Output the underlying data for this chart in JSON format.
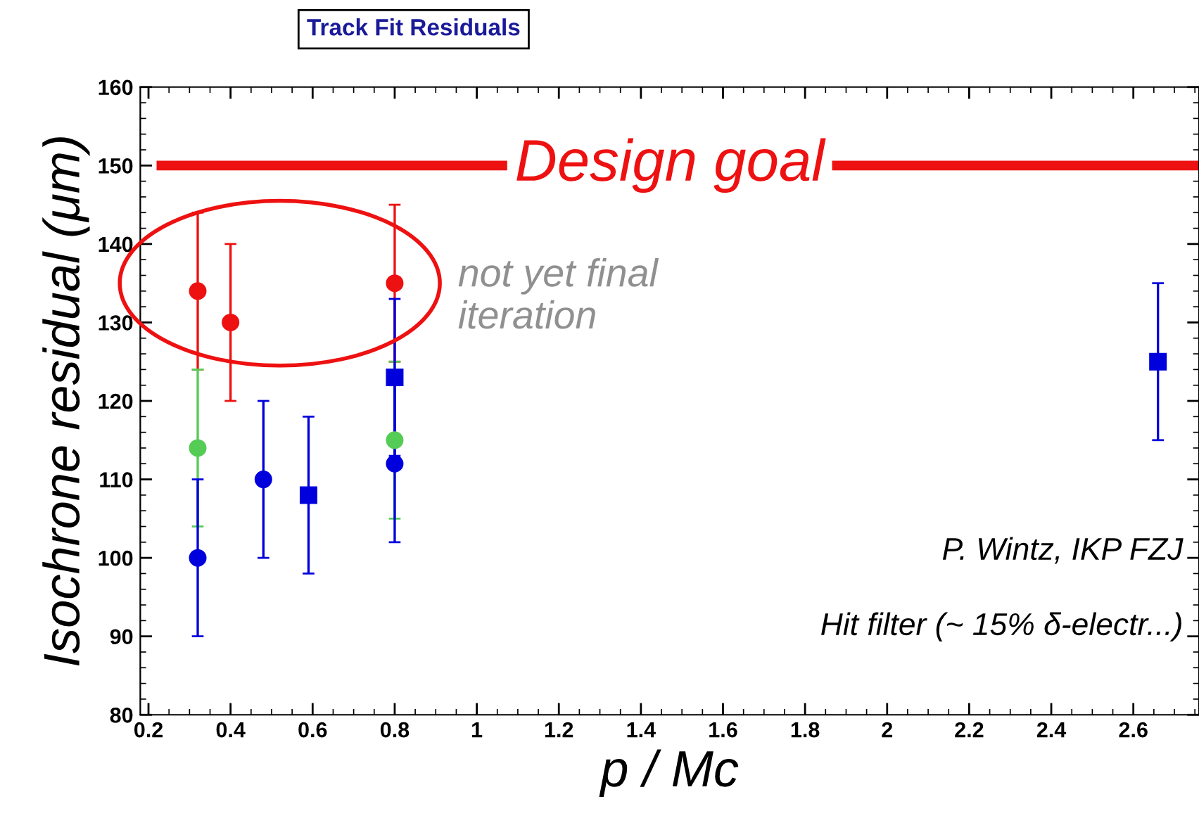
{
  "chart_data": {
    "type": "scatter",
    "title": "Track Fit Residuals",
    "xlabel": "p / Mc",
    "ylabel": "Isochrone residual (μm)",
    "xlim": [
      0.18,
      2.76
    ],
    "xticks": [
      0.2,
      0.4,
      0.6,
      0.8,
      1,
      1.2,
      1.4,
      1.6,
      1.8,
      2,
      2.2,
      2.4,
      2.6
    ],
    "ylim": [
      80,
      160
    ],
    "yticks": [
      80,
      90,
      100,
      110,
      120,
      130,
      140,
      150,
      160
    ],
    "grid": false,
    "series": [
      {
        "color": "#ee1111",
        "marker": "circle",
        "x": [
          0.32,
          0.4,
          0.8
        ],
        "values": [
          134,
          130,
          135
        ],
        "errors": [
          10,
          10,
          10
        ]
      },
      {
        "color": "#55cc55",
        "marker": "circle",
        "x": [
          0.32,
          0.8
        ],
        "values": [
          114,
          115
        ],
        "errors": [
          10,
          10
        ]
      },
      {
        "color": "#0000dd",
        "marker": "circle",
        "x": [
          0.32,
          0.48,
          0.8
        ],
        "values": [
          100,
          110,
          112
        ],
        "errors": [
          10,
          10,
          10
        ]
      },
      {
        "color": "#0000dd",
        "marker": "square",
        "x": [
          0.59,
          0.8,
          2.66
        ],
        "values": [
          108,
          123,
          125
        ],
        "errors": [
          10,
          10,
          10
        ]
      }
    ],
    "ref_lines": [
      {
        "axis": "y",
        "value": 150,
        "label": "Design goal",
        "color": "#ee1111"
      }
    ],
    "annotations": [
      "not yet final\niteration",
      "P. Wintz, IKP FZJ",
      "Hit filter (~ 15% δ-electr...)"
    ]
  }
}
